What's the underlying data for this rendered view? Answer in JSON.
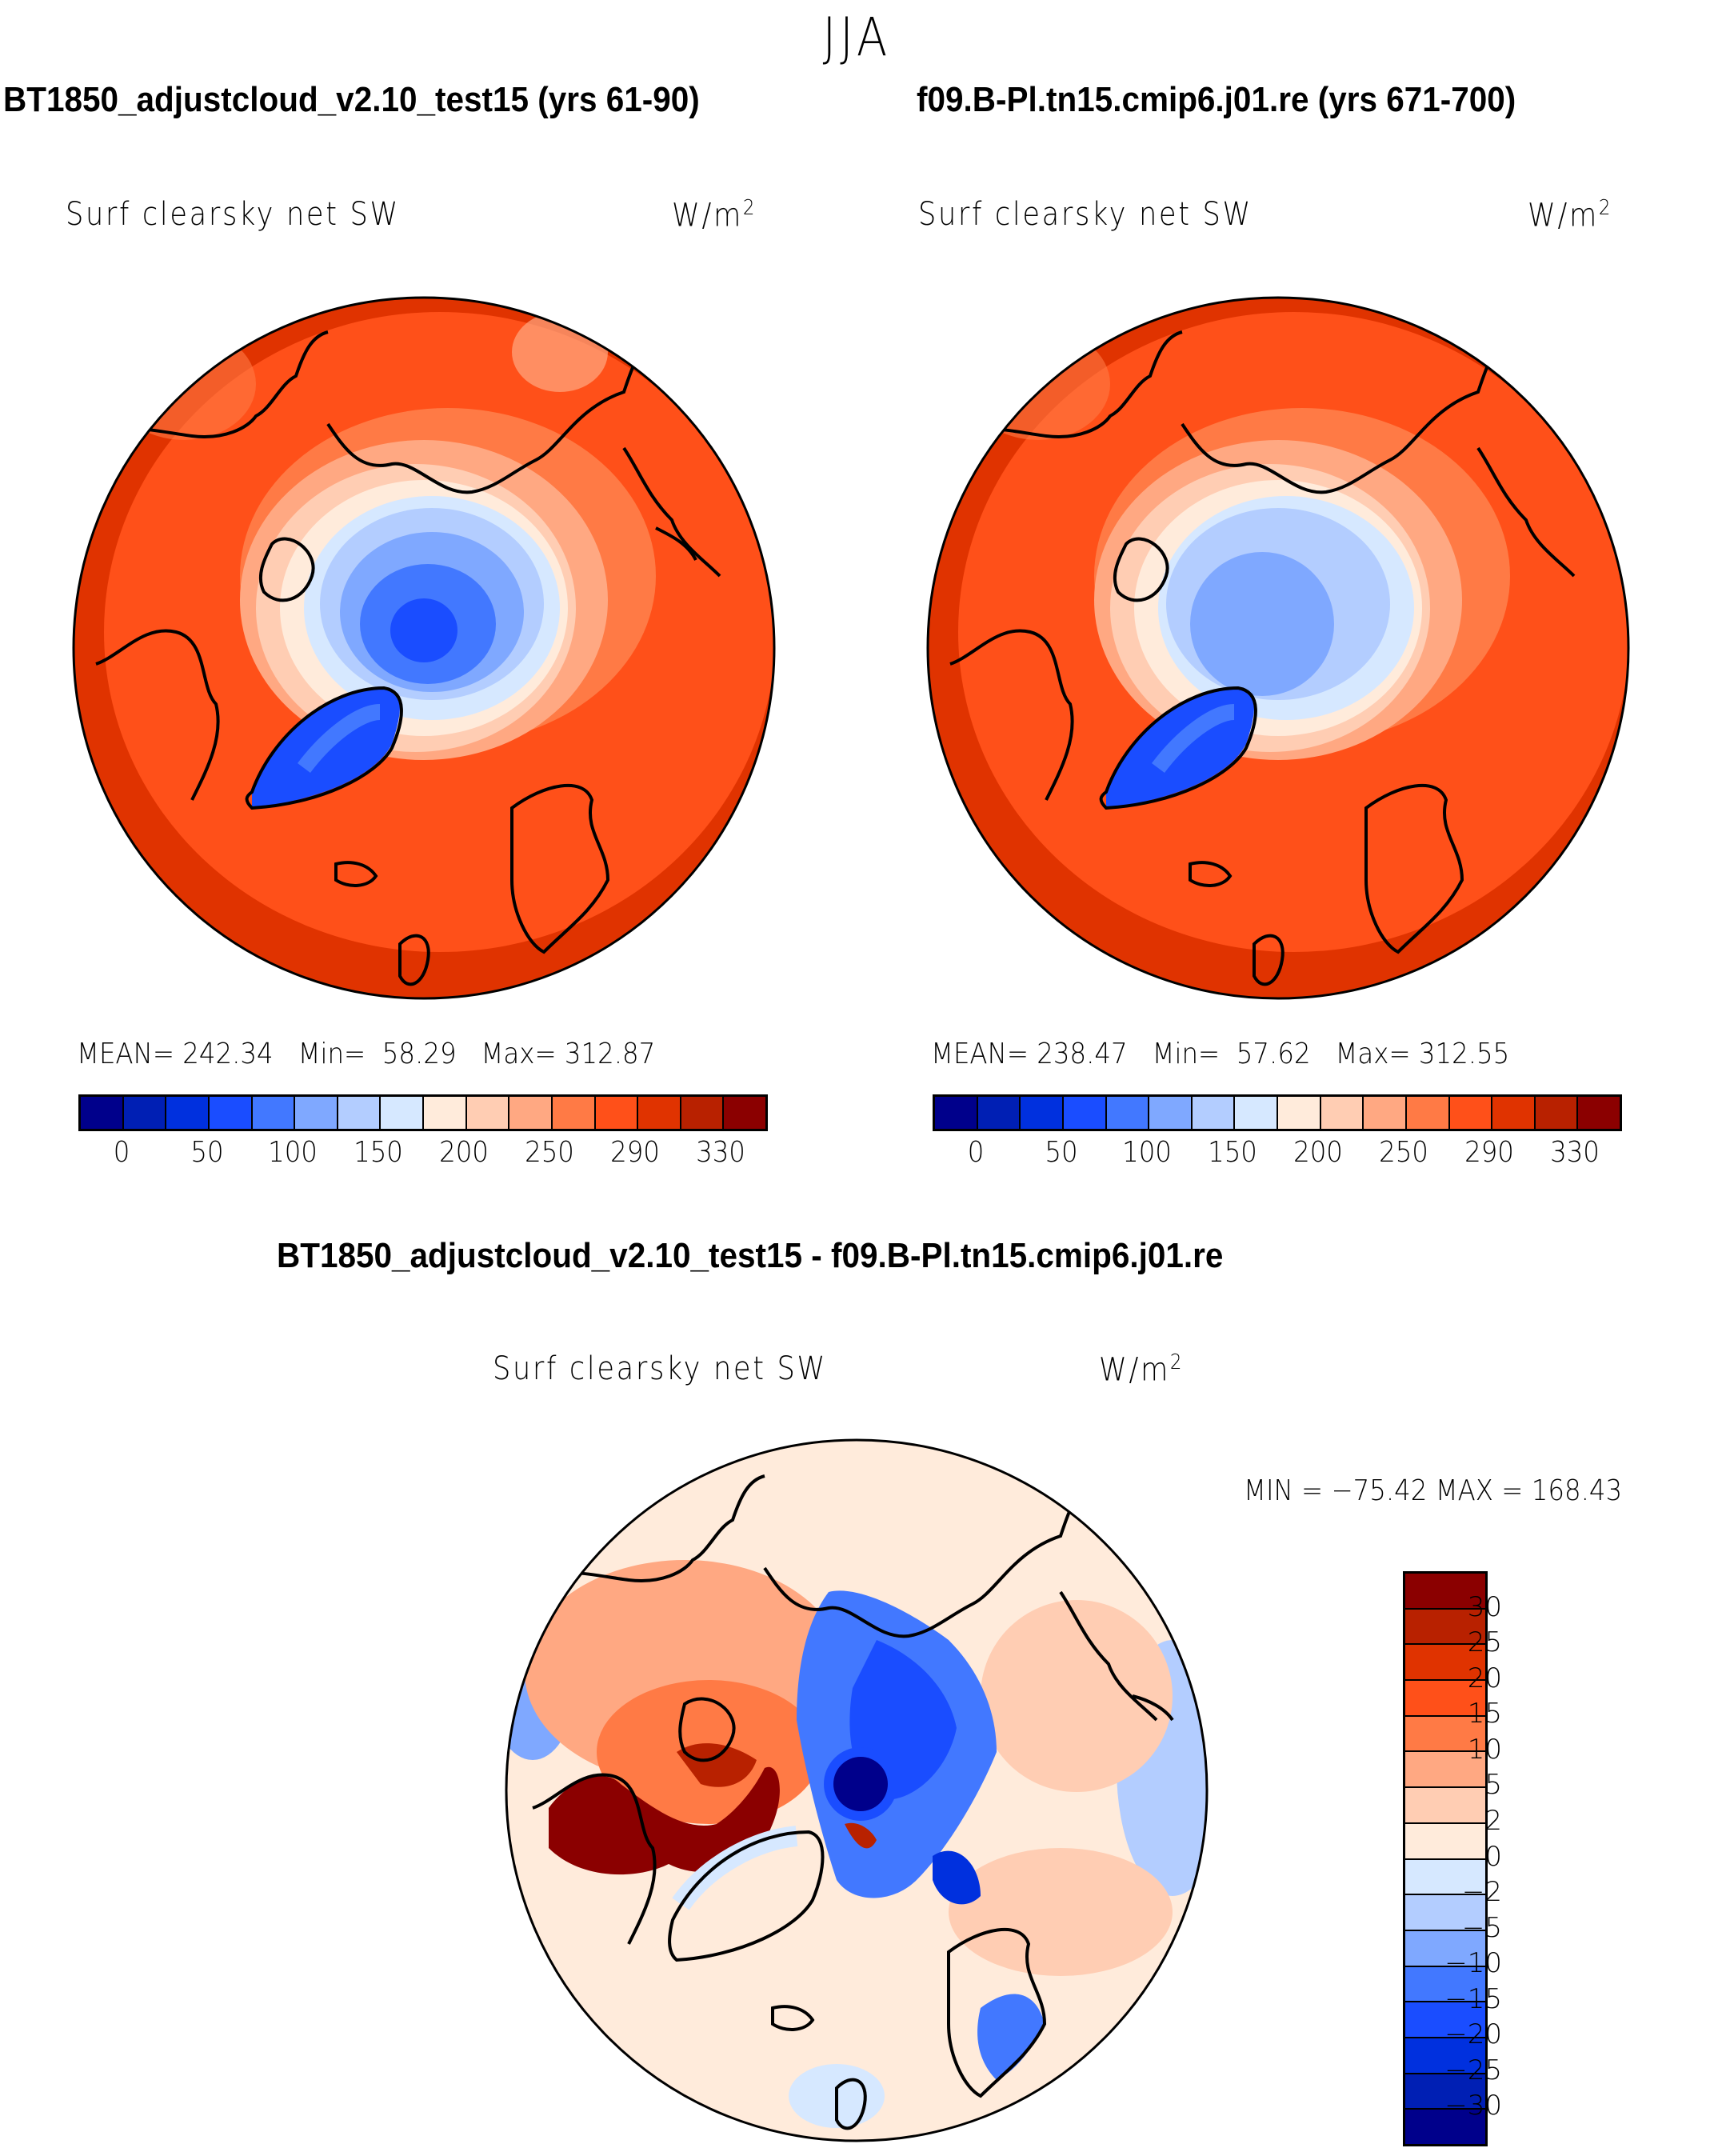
{
  "figure": {
    "title": "JJA"
  },
  "chart_data": [
    {
      "type": "heatmap",
      "projection": "north-polar-stereographic",
      "case_title": "BT1850_adjustcloud_v2.10_test15 (yrs 61-90)",
      "variable": "Surf clearsky net SW",
      "units_base": "W/m",
      "units_sup": "2",
      "stats": {
        "mean_label": "MEAN=",
        "mean": "242.34",
        "min_label": "Min=",
        "min": "58.29",
        "max_label": "Max=",
        "max": "312.87"
      },
      "colorbar": {
        "orientation": "horizontal",
        "tick_labels": [
          "0",
          "50",
          "100",
          "150",
          "200",
          "250",
          "290",
          "330"
        ],
        "colors": [
          "#00008b",
          "#001fb4",
          "#0030de",
          "#1a4dff",
          "#4278ff",
          "#7fa8ff",
          "#b3cdff",
          "#d6e8ff",
          "#ffebdb",
          "#ffcdb3",
          "#ffa882",
          "#ff7a45",
          "#ff5019",
          "#e03300",
          "#b82100",
          "#8b0000"
        ]
      },
      "field_regions": {
        "central_arctic": "light-to-mid blue (≈100–200)",
        "greenland": "blue (≈50–100)",
        "open_ocean_midlatitudes": "red (≈270–310)"
      }
    },
    {
      "type": "heatmap",
      "projection": "north-polar-stereographic",
      "case_title": "f09.B-Pl.tn15.cmip6.j01.re (yrs 671-700)",
      "variable": "Surf clearsky net SW",
      "units_base": "W/m",
      "units_sup": "2",
      "stats": {
        "mean_label": "MEAN=",
        "mean": "238.47",
        "min_label": "Min=",
        "min": "57.62",
        "max_label": "Max=",
        "max": "312.55"
      },
      "colorbar": {
        "orientation": "horizontal",
        "tick_labels": [
          "0",
          "50",
          "100",
          "150",
          "200",
          "250",
          "290",
          "330"
        ],
        "colors": [
          "#00008b",
          "#001fb4",
          "#0030de",
          "#1a4dff",
          "#4278ff",
          "#7fa8ff",
          "#b3cdff",
          "#d6e8ff",
          "#ffebdb",
          "#ffcdb3",
          "#ffa882",
          "#ff7a45",
          "#ff5019",
          "#e03300",
          "#b82100",
          "#8b0000"
        ]
      },
      "field_regions": {
        "central_arctic": "light blue (≈150–200)",
        "greenland": "blue (≈50–100)",
        "open_ocean_midlatitudes": "red (≈270–310)"
      }
    },
    {
      "type": "heatmap",
      "projection": "north-polar-stereographic",
      "case_title": "BT1850_adjustcloud_v2.10_test15 - f09.B-Pl.tn15.cmip6.j01.re",
      "variable": "Surf clearsky net SW",
      "units_base": "W/m",
      "units_sup": "2",
      "stats": {
        "text": "MIN = −75.42 MAX = 168.43",
        "min": "-75.42",
        "max": "168.43"
      },
      "colorbar": {
        "orientation": "vertical",
        "tick_labels": [
          "30",
          "25",
          "20",
          "15",
          "10",
          "5",
          "2",
          "0",
          "−2",
          "−5",
          "−10",
          "−15",
          "−20",
          "−25",
          "−30"
        ],
        "colors": [
          "#8b0000",
          "#b82100",
          "#e03300",
          "#ff5019",
          "#ff7a45",
          "#ffa882",
          "#ffcdb3",
          "#ffebdb",
          "#d6e8ff",
          "#b3cdff",
          "#7fa8ff",
          "#4278ff",
          "#1a4dff",
          "#0030de",
          "#001fb4",
          "#00008b"
        ]
      },
      "field_regions": {
        "north_pole": "dark blue (< −30)",
        "central_arctic_ocean": "blue (−10 to −25)",
        "canadian_archipelago_baffin": "dark red (> 25)",
        "midlatitudes": "near zero (0–5), mixed"
      }
    }
  ]
}
